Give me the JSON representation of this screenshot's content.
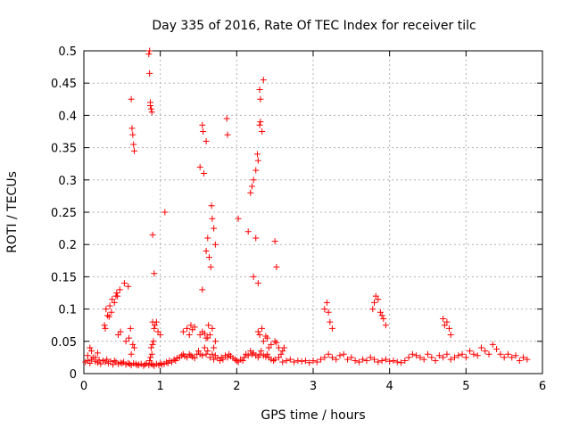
{
  "chart_data": {
    "type": "scatter",
    "title": "Day 335 of 2016, Rate Of TEC Index for receiver tilc",
    "xlabel": "GPS time / hours",
    "ylabel": "ROTI / TECUs",
    "xlim": [
      0,
      6
    ],
    "ylim": [
      0,
      0.5
    ],
    "xticks": [
      "0",
      "1",
      "2",
      "3",
      "4",
      "5",
      "6"
    ],
    "yticks": [
      "0",
      "0.05",
      "0.1",
      "0.15",
      "0.2",
      "0.25",
      "0.3",
      "0.35",
      "0.4",
      "0.45",
      "0.5"
    ],
    "grid": true,
    "marker": "+",
    "series": [
      {
        "name": "ROTI",
        "color": "#ff0000",
        "x": [
          0.02,
          0.05,
          0.08,
          0.1,
          0.12,
          0.15,
          0.18,
          0.2,
          0.22,
          0.25,
          0.28,
          0.3,
          0.32,
          0.35,
          0.38,
          0.4,
          0.42,
          0.45,
          0.48,
          0.5,
          0.52,
          0.55,
          0.58,
          0.6,
          0.62,
          0.65,
          0.68,
          0.7,
          0.72,
          0.75,
          0.78,
          0.8,
          0.82,
          0.85,
          0.88,
          0.9,
          0.92,
          0.95,
          0.98,
          1.0,
          1.02,
          1.05,
          1.08,
          1.1,
          1.12,
          1.15,
          1.18,
          1.2,
          1.22,
          1.25,
          1.28,
          1.3,
          1.32,
          1.35,
          1.38,
          1.4,
          1.42,
          1.45,
          1.48,
          1.5,
          1.52,
          1.55,
          1.58,
          1.6,
          1.62,
          1.65,
          1.68,
          1.7,
          1.72,
          1.75,
          1.78,
          1.8,
          1.82,
          1.85,
          1.88,
          1.9,
          1.92,
          1.95,
          1.98,
          2.0,
          2.02,
          2.05,
          2.08,
          2.1,
          2.12,
          2.15,
          2.18,
          2.2,
          2.22,
          2.25,
          2.28,
          2.3,
          2.32,
          2.35,
          2.38,
          2.4,
          2.42,
          2.45,
          2.48,
          2.5,
          2.55,
          2.6,
          2.65,
          2.7,
          2.75,
          2.8,
          2.85,
          2.9,
          2.95,
          3.0,
          3.05,
          3.1,
          3.15,
          3.2,
          3.25,
          3.3,
          3.35,
          3.4,
          3.45,
          3.5,
          3.55,
          3.6,
          3.65,
          3.7,
          3.75,
          3.8,
          3.85,
          3.9,
          3.95,
          4.0,
          4.05,
          4.1,
          4.15,
          4.2,
          4.25,
          4.3,
          4.35,
          4.4,
          4.45,
          4.5,
          4.55,
          4.6,
          4.65,
          4.7,
          4.75,
          4.8,
          4.85,
          4.9,
          4.95,
          5.0,
          5.05,
          5.1,
          5.15,
          5.2,
          5.25,
          5.3,
          5.35,
          5.4,
          5.45,
          5.5,
          5.55,
          5.6,
          5.65,
          5.7,
          5.75,
          5.8,
          0.05,
          0.1,
          0.15,
          0.08,
          0.18,
          0.28,
          0.33,
          0.36,
          0.4,
          0.44,
          0.27,
          0.31,
          0.29,
          0.34,
          0.37,
          0.45,
          0.48,
          0.42,
          0.43,
          0.47,
          0.53,
          0.58,
          0.61,
          0.64,
          0.55,
          0.59,
          0.62,
          0.66,
          0.86,
          0.87,
          0.88,
          0.89,
          0.9,
          0.91,
          0.92,
          0.93,
          0.95,
          0.97,
          1.0,
          1.3,
          1.35,
          1.38,
          1.4,
          1.42,
          1.45,
          1.55,
          1.6,
          1.63,
          1.65,
          1.68,
          1.52,
          1.58,
          1.62,
          1.7,
          1.72,
          2.3,
          2.35,
          2.4,
          2.28,
          2.3,
          2.33,
          2.38,
          2.42,
          2.45,
          2.5,
          2.52,
          2.55,
          2.58,
          2.6,
          2.62,
          3.15,
          3.18,
          3.2,
          3.22,
          3.25,
          3.78,
          3.8,
          3.82,
          3.85,
          3.88,
          3.9,
          3.92,
          3.95,
          4.7,
          4.72,
          4.75,
          4.78,
          4.8,
          0.62,
          0.63,
          0.64,
          0.65,
          0.66,
          0.85,
          0.86,
          0.87,
          0.88,
          0.89,
          0.9,
          0.92,
          1.06,
          1.52,
          1.55,
          1.56,
          1.57,
          1.6,
          1.62,
          1.64,
          1.66,
          1.67,
          1.68,
          1.7,
          1.72,
          1.87,
          1.88,
          2.02,
          2.15,
          2.18,
          2.2,
          2.22,
          2.25,
          2.27,
          2.28,
          2.3,
          2.31,
          2.33,
          2.35,
          2.5,
          2.52,
          0.86,
          0.87,
          0.9,
          1.55,
          1.6,
          2.22,
          2.28,
          2.3,
          2.31,
          2.25
        ],
        "y": [
          0.018,
          0.02,
          0.016,
          0.022,
          0.025,
          0.019,
          0.017,
          0.021,
          0.015,
          0.02,
          0.018,
          0.022,
          0.016,
          0.019,
          0.014,
          0.02,
          0.018,
          0.015,
          0.017,
          0.016,
          0.018,
          0.014,
          0.016,
          0.015,
          0.013,
          0.016,
          0.015,
          0.013,
          0.014,
          0.015,
          0.012,
          0.014,
          0.016,
          0.013,
          0.015,
          0.014,
          0.012,
          0.015,
          0.013,
          0.016,
          0.014,
          0.015,
          0.018,
          0.016,
          0.02,
          0.018,
          0.022,
          0.02,
          0.024,
          0.025,
          0.028,
          0.03,
          0.027,
          0.025,
          0.03,
          0.028,
          0.026,
          0.024,
          0.03,
          0.035,
          0.03,
          0.028,
          0.04,
          0.03,
          0.035,
          0.025,
          0.03,
          0.022,
          0.028,
          0.024,
          0.02,
          0.025,
          0.022,
          0.028,
          0.025,
          0.03,
          0.027,
          0.024,
          0.022,
          0.02,
          0.018,
          0.022,
          0.02,
          0.025,
          0.03,
          0.028,
          0.035,
          0.03,
          0.032,
          0.028,
          0.025,
          0.03,
          0.035,
          0.028,
          0.026,
          0.03,
          0.025,
          0.022,
          0.02,
          0.022,
          0.025,
          0.018,
          0.02,
          0.022,
          0.018,
          0.02,
          0.019,
          0.02,
          0.017,
          0.02,
          0.018,
          0.022,
          0.025,
          0.03,
          0.025,
          0.022,
          0.028,
          0.03,
          0.022,
          0.025,
          0.02,
          0.018,
          0.022,
          0.02,
          0.025,
          0.022,
          0.018,
          0.02,
          0.022,
          0.019,
          0.02,
          0.018,
          0.017,
          0.02,
          0.025,
          0.03,
          0.028,
          0.025,
          0.022,
          0.03,
          0.025,
          0.02,
          0.028,
          0.025,
          0.03,
          0.022,
          0.025,
          0.028,
          0.03,
          0.025,
          0.035,
          0.03,
          0.028,
          0.04,
          0.035,
          0.03,
          0.045,
          0.038,
          0.03,
          0.025,
          0.03,
          0.025,
          0.028,
          0.02,
          0.025,
          0.022,
          0.028,
          0.035,
          0.025,
          0.04,
          0.032,
          0.07,
          0.088,
          0.095,
          0.11,
          0.12,
          0.075,
          0.09,
          0.1,
          0.105,
          0.115,
          0.06,
          0.065,
          0.12,
          0.125,
          0.13,
          0.14,
          0.135,
          0.07,
          0.045,
          0.05,
          0.055,
          0.03,
          0.04,
          0.02,
          0.025,
          0.04,
          0.03,
          0.045,
          0.05,
          0.07,
          0.075,
          0.08,
          0.065,
          0.06,
          0.065,
          0.07,
          0.06,
          0.075,
          0.068,
          0.072,
          0.065,
          0.055,
          0.075,
          0.06,
          0.07,
          0.06,
          0.062,
          0.055,
          0.04,
          0.05,
          0.06,
          0.05,
          0.055,
          0.065,
          0.06,
          0.07,
          0.058,
          0.04,
          0.045,
          0.05,
          0.048,
          0.04,
          0.03,
          0.035,
          0.04,
          0.1,
          0.11,
          0.095,
          0.08,
          0.07,
          0.1,
          0.11,
          0.12,
          0.115,
          0.095,
          0.09,
          0.085,
          0.075,
          0.085,
          0.075,
          0.08,
          0.07,
          0.06,
          0.425,
          0.38,
          0.37,
          0.355,
          0.345,
          0.495,
          0.465,
          0.415,
          0.41,
          0.405,
          0.215,
          0.155,
          0.25,
          0.32,
          0.385,
          0.375,
          0.31,
          0.36,
          0.21,
          0.18,
          0.165,
          0.26,
          0.24,
          0.225,
          0.2,
          0.395,
          0.37,
          0.24,
          0.22,
          0.28,
          0.29,
          0.3,
          0.315,
          0.34,
          0.33,
          0.385,
          0.39,
          0.375,
          0.455,
          0.205,
          0.165,
          0.5,
          0.42,
          0.08,
          0.13,
          0.19,
          0.15,
          0.14,
          0.44,
          0.425,
          0.21
        ]
      }
    ]
  }
}
